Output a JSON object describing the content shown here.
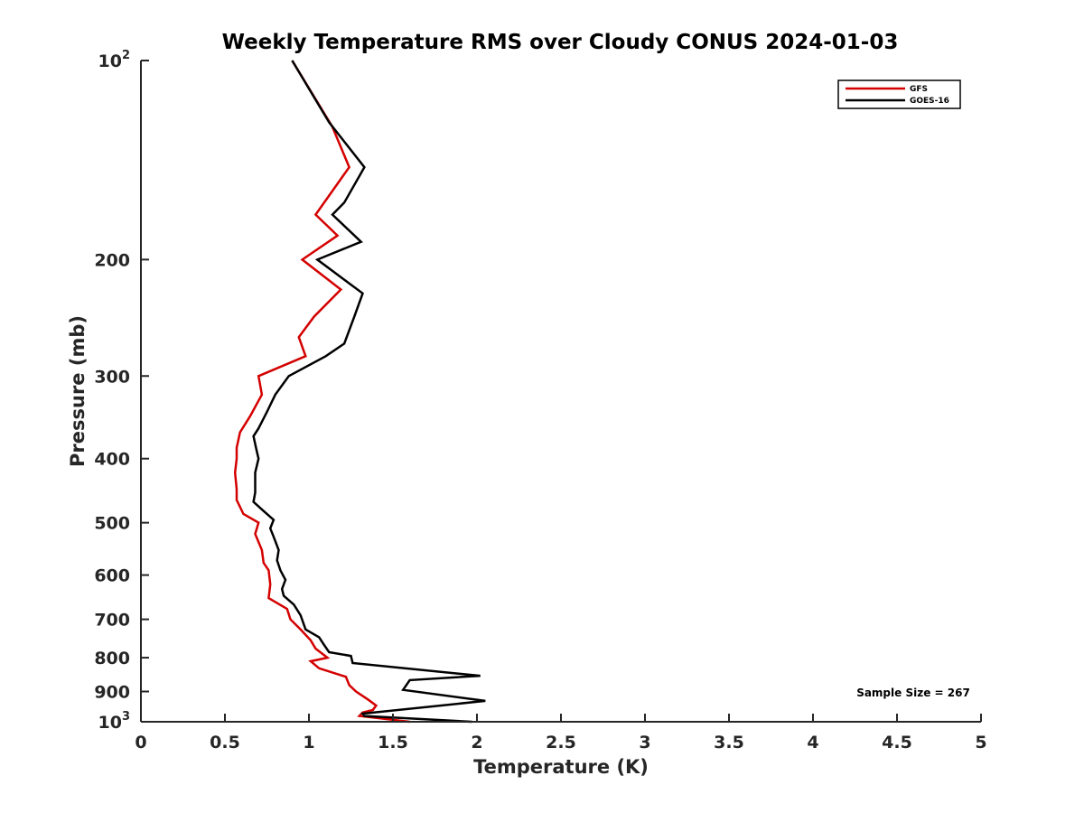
{
  "chart_data": {
    "type": "line",
    "title": "Weekly Temperature RMS over Cloudy CONUS 2024-01-03",
    "xlabel": "Temperature (K)",
    "ylabel": "Pressure (mb)",
    "xlim": [
      0,
      5
    ],
    "ylim": [
      100,
      1000
    ],
    "y_scale": "log",
    "y_reversed": true,
    "grid": false,
    "legend_position": "top-right",
    "x_ticks": [
      {
        "value": 0,
        "label": "0"
      },
      {
        "value": 0.5,
        "label": "0.5"
      },
      {
        "value": 1,
        "label": "1"
      },
      {
        "value": 1.5,
        "label": "1.5"
      },
      {
        "value": 2,
        "label": "2"
      },
      {
        "value": 2.5,
        "label": "2.5"
      },
      {
        "value": 3,
        "label": "3"
      },
      {
        "value": 3.5,
        "label": "3.5"
      },
      {
        "value": 4,
        "label": "4"
      },
      {
        "value": 4.5,
        "label": "4.5"
      },
      {
        "value": 5,
        "label": "5"
      }
    ],
    "y_ticks": [
      {
        "value": 100,
        "label": "10",
        "sup": "2"
      },
      {
        "value": 200,
        "label": "200",
        "sup": ""
      },
      {
        "value": 300,
        "label": "300",
        "sup": ""
      },
      {
        "value": 400,
        "label": "400",
        "sup": ""
      },
      {
        "value": 500,
        "label": "500",
        "sup": ""
      },
      {
        "value": 600,
        "label": "600",
        "sup": ""
      },
      {
        "value": 700,
        "label": "700",
        "sup": ""
      },
      {
        "value": 800,
        "label": "800",
        "sup": ""
      },
      {
        "value": 900,
        "label": "900",
        "sup": ""
      },
      {
        "value": 1000,
        "label": "10",
        "sup": "3"
      }
    ],
    "series": [
      {
        "name": "GFS",
        "color": "#d40000",
        "points": [
          [
            0.9,
            100
          ],
          [
            1.14,
            126
          ],
          [
            1.24,
            145
          ],
          [
            1.04,
            171
          ],
          [
            1.17,
            184
          ],
          [
            0.96,
            200
          ],
          [
            1.19,
            222
          ],
          [
            1.03,
            244
          ],
          [
            0.94,
            262
          ],
          [
            0.98,
            280
          ],
          [
            0.7,
            300
          ],
          [
            0.72,
            320
          ],
          [
            0.65,
            345
          ],
          [
            0.59,
            365
          ],
          [
            0.57,
            385
          ],
          [
            0.57,
            400
          ],
          [
            0.56,
            420
          ],
          [
            0.57,
            445
          ],
          [
            0.57,
            462
          ],
          [
            0.61,
            485
          ],
          [
            0.7,
            500
          ],
          [
            0.68,
            520
          ],
          [
            0.72,
            550
          ],
          [
            0.73,
            575
          ],
          [
            0.76,
            590
          ],
          [
            0.77,
            620
          ],
          [
            0.76,
            650
          ],
          [
            0.87,
            675
          ],
          [
            0.89,
            700
          ],
          [
            0.95,
            725
          ],
          [
            1.01,
            753
          ],
          [
            1.04,
            775
          ],
          [
            1.11,
            800
          ],
          [
            1.01,
            810
          ],
          [
            1.06,
            830
          ],
          [
            1.22,
            855
          ],
          [
            1.24,
            880
          ],
          [
            1.28,
            900
          ],
          [
            1.35,
            925
          ],
          [
            1.4,
            945
          ],
          [
            1.38,
            960
          ],
          [
            1.32,
            968
          ],
          [
            1.3,
            980
          ],
          [
            1.6,
            1000
          ]
        ]
      },
      {
        "name": "GOES-16",
        "color": "#000000",
        "points": [
          [
            0.9,
            100
          ],
          [
            1.12,
            124
          ],
          [
            1.33,
            145
          ],
          [
            1.21,
            164
          ],
          [
            1.14,
            171
          ],
          [
            1.31,
            188
          ],
          [
            1.05,
            200
          ],
          [
            1.32,
            225
          ],
          [
            1.27,
            244
          ],
          [
            1.21,
            268
          ],
          [
            1.1,
            280
          ],
          [
            0.88,
            300
          ],
          [
            0.8,
            320
          ],
          [
            0.75,
            340
          ],
          [
            0.7,
            360
          ],
          [
            0.67,
            370
          ],
          [
            0.69,
            390
          ],
          [
            0.7,
            400
          ],
          [
            0.68,
            420
          ],
          [
            0.68,
            450
          ],
          [
            0.67,
            465
          ],
          [
            0.73,
            480
          ],
          [
            0.79,
            495
          ],
          [
            0.77,
            510
          ],
          [
            0.79,
            525
          ],
          [
            0.82,
            550
          ],
          [
            0.81,
            570
          ],
          [
            0.83,
            590
          ],
          [
            0.86,
            610
          ],
          [
            0.84,
            630
          ],
          [
            0.85,
            645
          ],
          [
            0.91,
            665
          ],
          [
            0.95,
            690
          ],
          [
            0.98,
            725
          ],
          [
            1.06,
            745
          ],
          [
            1.09,
            765
          ],
          [
            1.12,
            785
          ],
          [
            1.25,
            795
          ],
          [
            1.26,
            815
          ],
          [
            2.02,
            852
          ],
          [
            1.6,
            865
          ],
          [
            1.56,
            895
          ],
          [
            2.05,
            930
          ],
          [
            1.32,
            972
          ],
          [
            1.33,
            980
          ],
          [
            1.97,
            1000
          ]
        ]
      }
    ],
    "annotations": [
      {
        "text": "Sample Size = 267"
      }
    ]
  }
}
